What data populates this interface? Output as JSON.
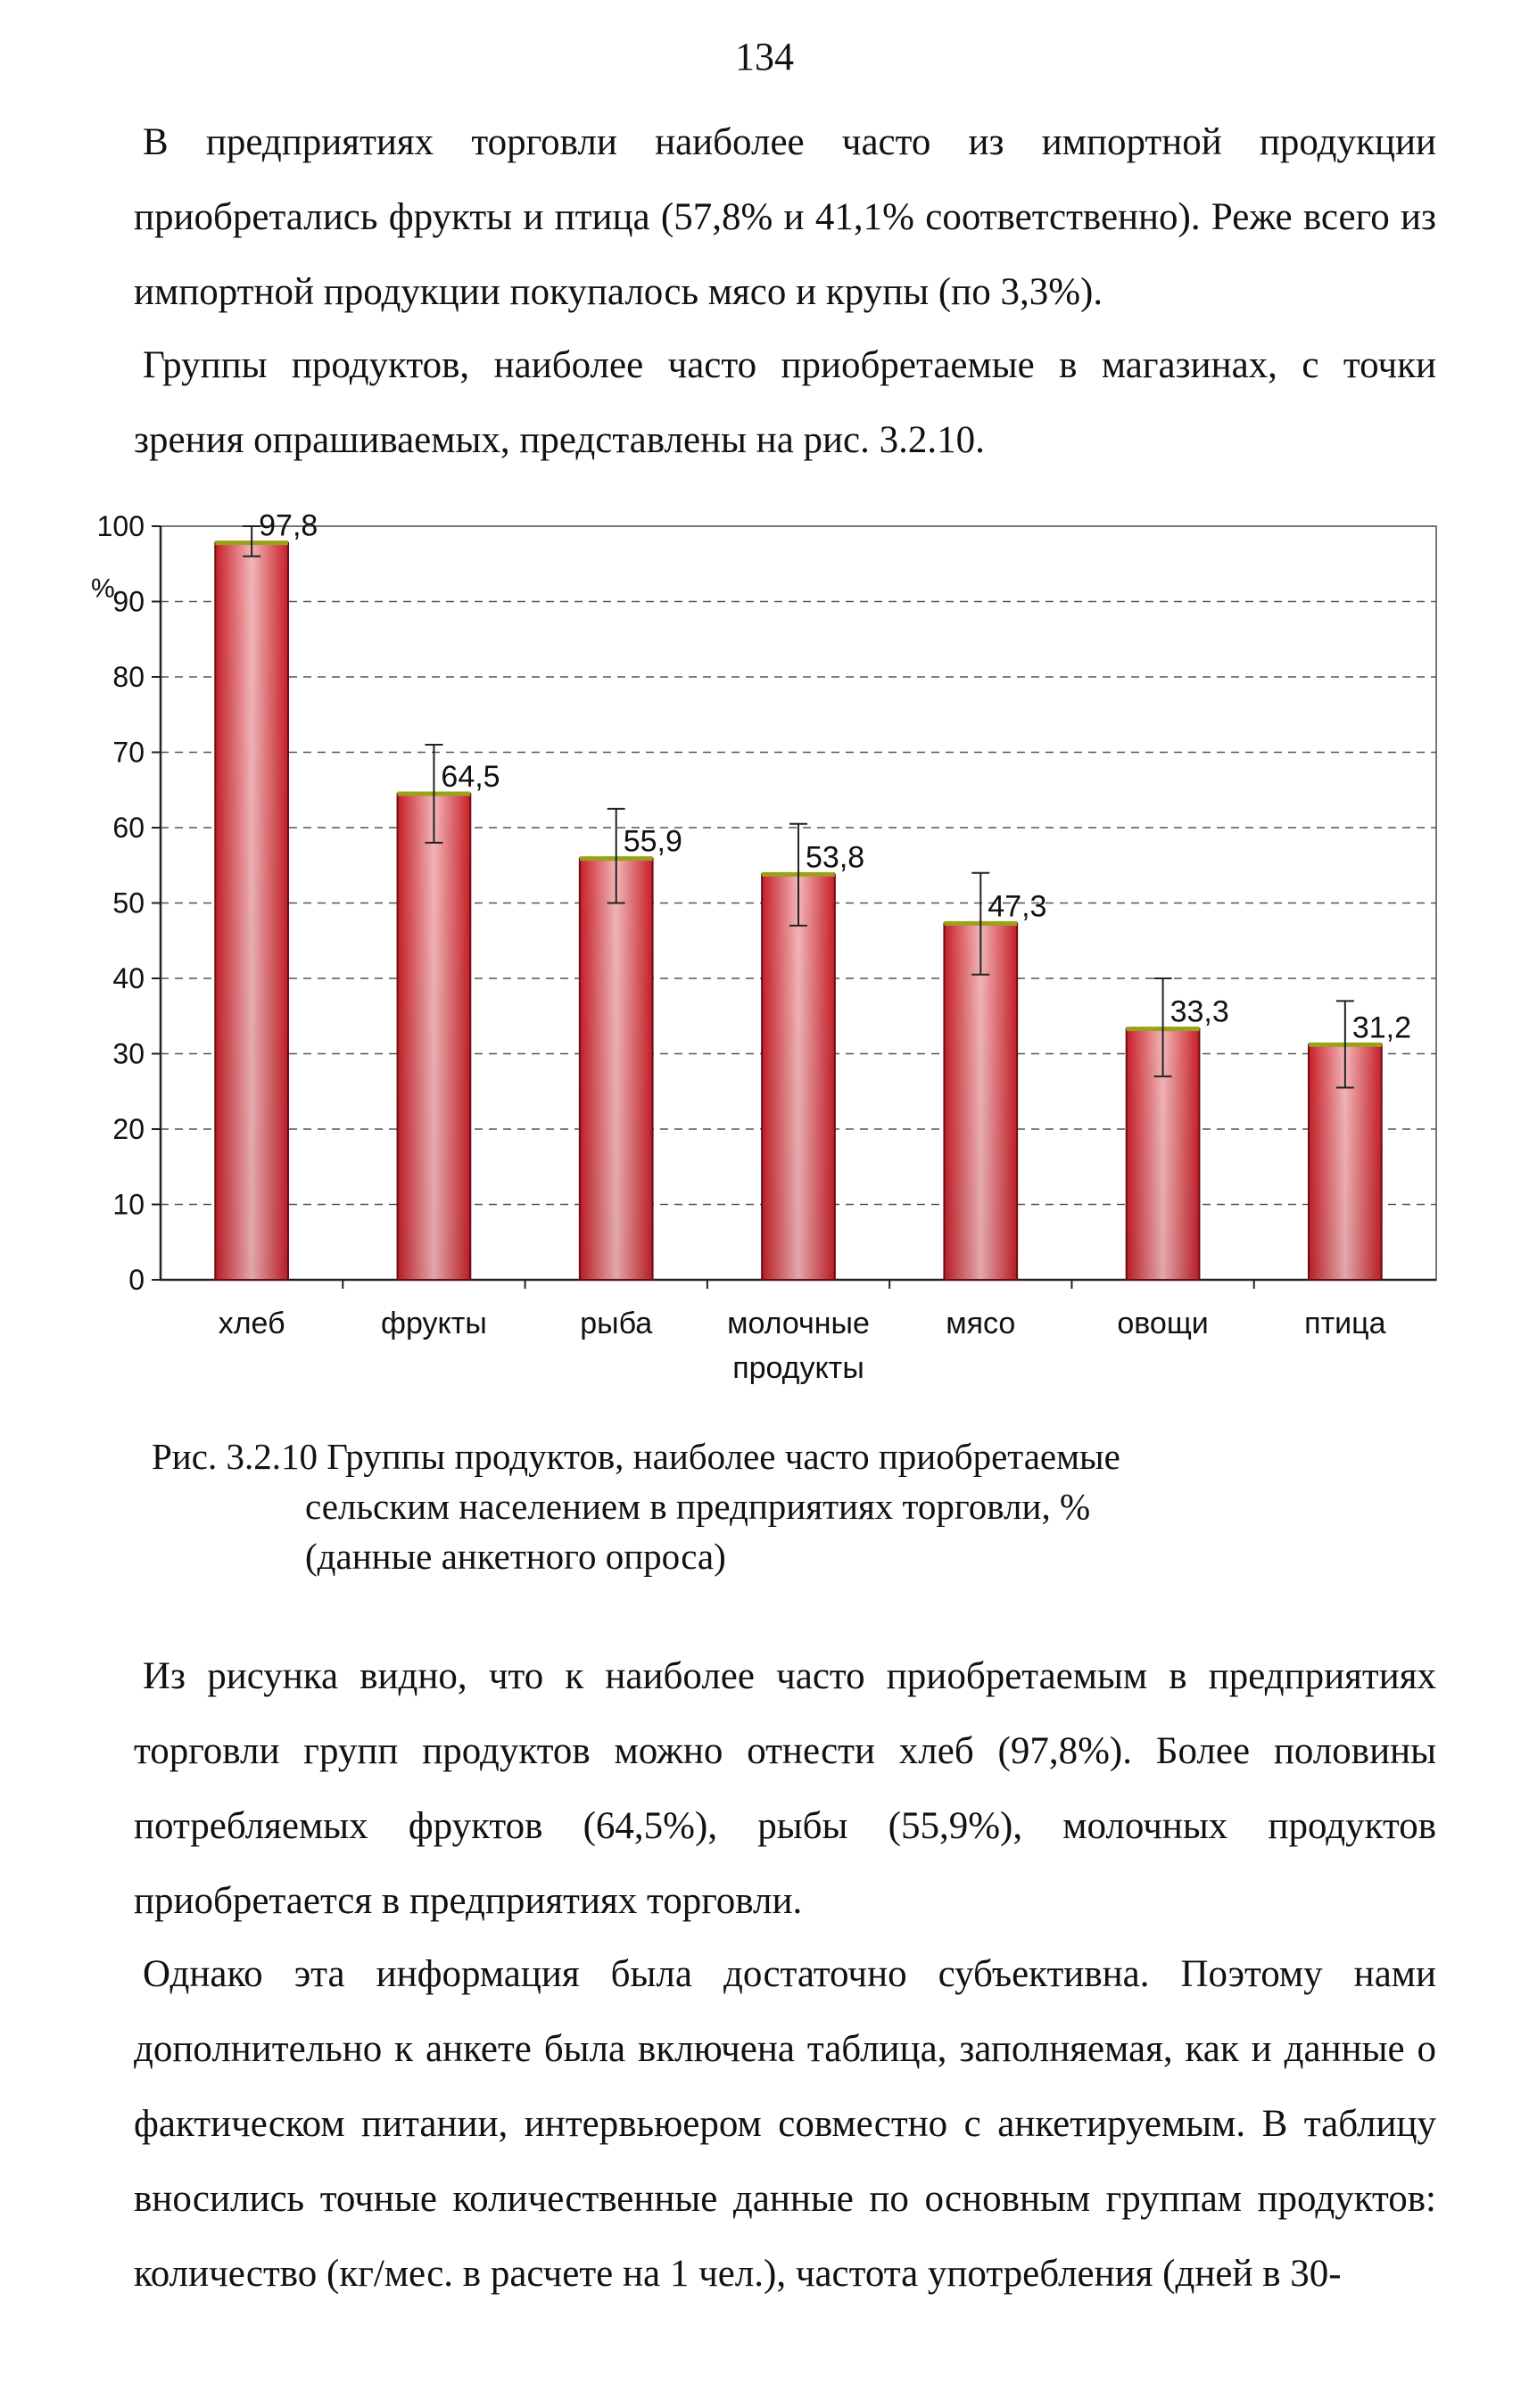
{
  "page_number": "134",
  "paragraphs": [
    "В предприятиях торговли наиболее часто из импортной продукции приобретались фрукты и птица (57,8% и 41,1% соответственно). Реже всего из импортной продукции покупалось мясо и крупы (по 3,3%).",
    "Группы продуктов, наиболее часто приобретаемые в магазинах, с точки зрения опрашиваемых, представлены на рис. 3.2.10.",
    "Из рисунка видно, что к наиболее часто приобретаемым в предприятиях торговли групп продуктов можно отнести хлеб (97,8%). Более половины потребляемых фруктов (64,5%), рыбы (55,9%), молочных продуктов приобретается в предприятиях торговли.",
    "Однако эта информация была достаточно субъективна. Поэтому нами дополнительно к анкете была включена таблица, заполняемая, как и данные о фактическом питании, интервьюером совместно с анкетируемым. В таблицу вносились точные количественные данные по основным группам продуктов: количество (кг/мес. в расчете на 1 чел.), частота употребления (дней в 30-"
  ],
  "caption": {
    "line1": "Рис. 3.2.10 Группы продуктов, наиболее часто приобретаемые",
    "line2": "сельским населением в предприятиях торговли, %",
    "line3": "(данные анкетного опроса)"
  },
  "chart_data": {
    "type": "bar",
    "categories": [
      [
        "хлеб"
      ],
      [
        "фрукты"
      ],
      [
        "рыба"
      ],
      [
        "молочные",
        "продукты"
      ],
      [
        "мясо"
      ],
      [
        "овощи"
      ],
      [
        "птица"
      ]
    ],
    "values": [
      97.8,
      64.5,
      55.9,
      53.8,
      47.3,
      33.3,
      31.2
    ],
    "value_labels": [
      "97,8",
      "64,5",
      "55,9",
      "53,8",
      "47,3",
      "33,3",
      "31,2"
    ],
    "error_low": [
      96.0,
      58.0,
      50.0,
      47.0,
      40.5,
      27.0,
      25.5
    ],
    "error_high": [
      100.0,
      71.0,
      62.5,
      60.5,
      54.0,
      40.0,
      37.0
    ],
    "ylabel": "%",
    "ylim": [
      0,
      100
    ],
    "yticks": [
      0,
      10,
      20,
      30,
      40,
      50,
      60,
      70,
      80,
      90,
      100
    ],
    "grid": "dashed horizontal",
    "legend": "none",
    "bar_color": "#c81e28",
    "bar_highlight": "#f3b6b8",
    "bar_edge": "#6b0d12"
  }
}
